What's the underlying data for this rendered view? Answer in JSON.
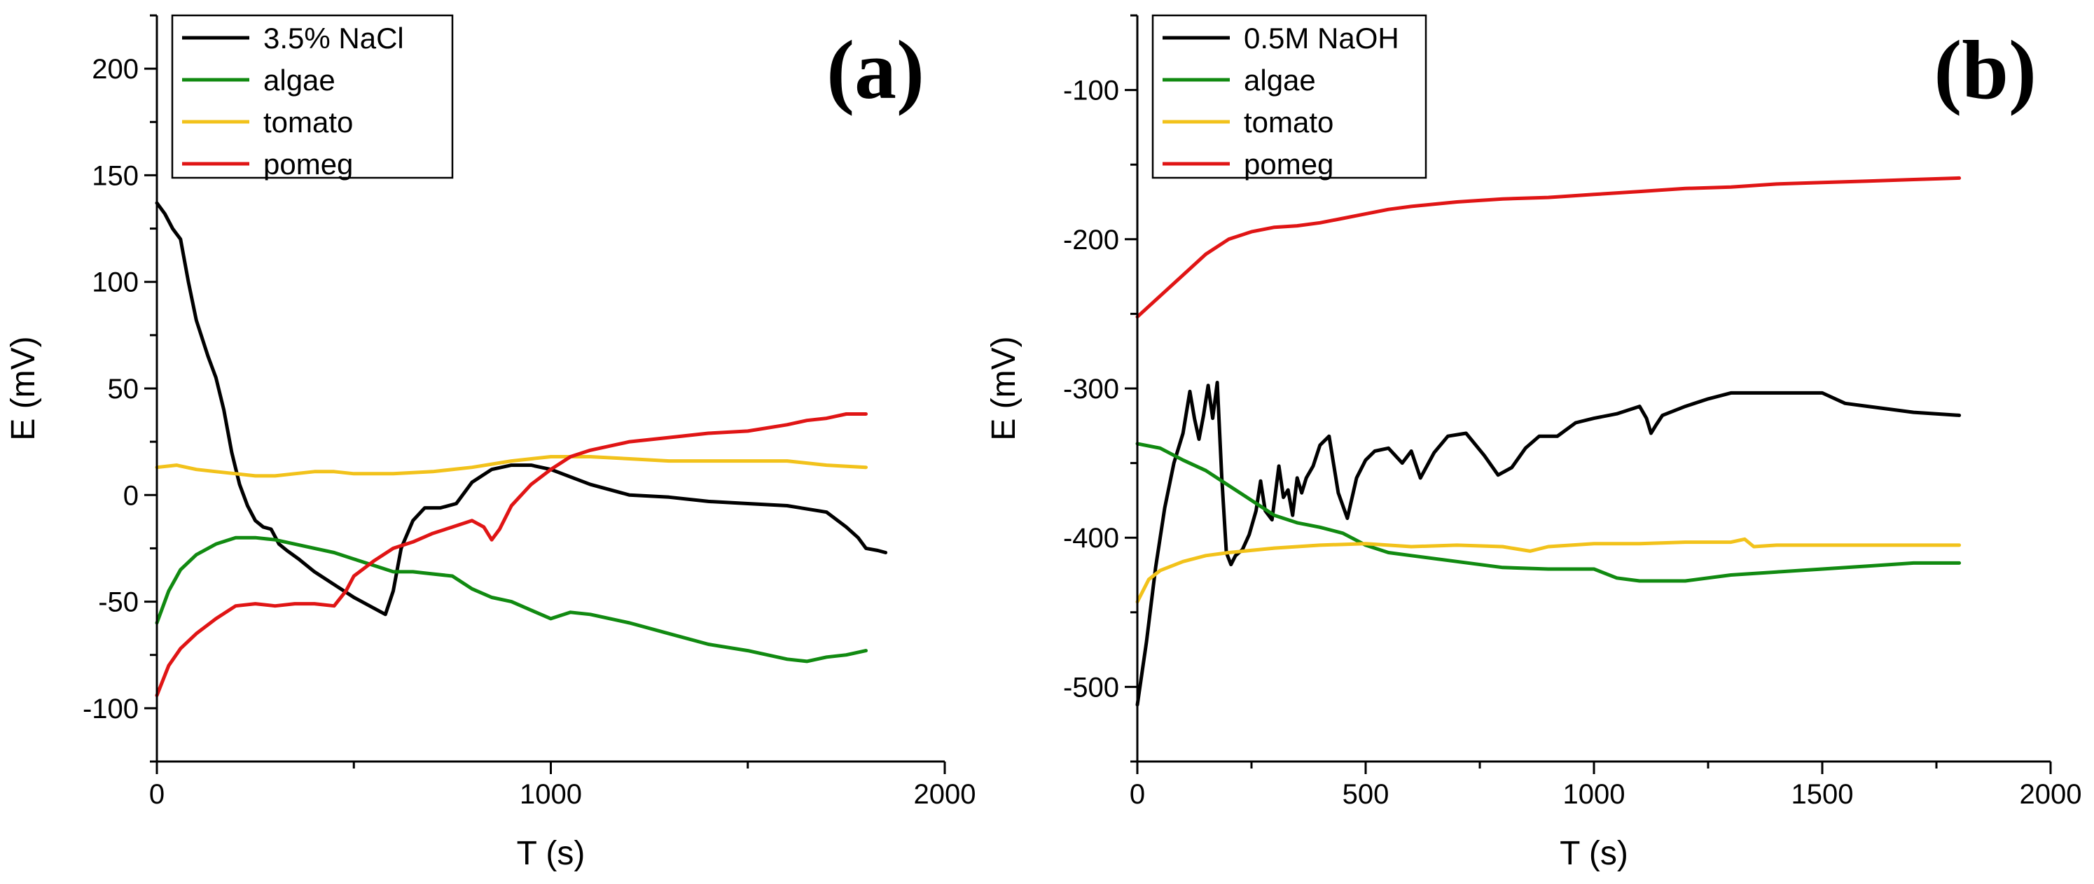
{
  "chart_data": [
    {
      "type": "line",
      "panel_label": "(a)",
      "xlabel": "T (s)",
      "ylabel": "E (mV)",
      "xlim": [
        0,
        2000
      ],
      "ylim": [
        -125,
        225
      ],
      "xticks": [
        0,
        1000,
        2000
      ],
      "yticks": [
        -100,
        -50,
        0,
        50,
        100,
        150,
        200
      ],
      "legend_position": "top-left",
      "series": [
        {
          "name": "3.5% NaCl",
          "color": "#000000",
          "x": [
            0,
            20,
            40,
            60,
            80,
            100,
            130,
            150,
            170,
            190,
            210,
            230,
            250,
            270,
            290,
            310,
            330,
            360,
            400,
            450,
            500,
            550,
            580,
            600,
            620,
            650,
            680,
            720,
            760,
            800,
            850,
            900,
            950,
            1000,
            1100,
            1200,
            1300,
            1400,
            1500,
            1600,
            1700,
            1750,
            1780,
            1800,
            1830,
            1850
          ],
          "y": [
            137,
            132,
            125,
            120,
            100,
            82,
            65,
            55,
            40,
            20,
            5,
            -5,
            -12,
            -15,
            -16,
            -23,
            -26,
            -30,
            -36,
            -42,
            -48,
            -53,
            -56,
            -45,
            -25,
            -12,
            -6,
            -6,
            -4,
            6,
            12,
            14,
            14,
            12,
            5,
            0,
            -1,
            -3,
            -4,
            -5,
            -8,
            -15,
            -20,
            -25,
            -26,
            -27
          ]
        },
        {
          "name": "algae",
          "color": "#118a11",
          "x": [
            0,
            30,
            60,
            100,
            150,
            200,
            250,
            300,
            350,
            400,
            450,
            500,
            550,
            600,
            650,
            700,
            750,
            800,
            850,
            900,
            950,
            1000,
            1050,
            1100,
            1200,
            1300,
            1400,
            1500,
            1600,
            1650,
            1700,
            1750,
            1800
          ],
          "y": [
            -60,
            -45,
            -35,
            -28,
            -23,
            -20,
            -20,
            -21,
            -23,
            -25,
            -27,
            -30,
            -33,
            -36,
            -36,
            -37,
            -38,
            -44,
            -48,
            -50,
            -54,
            -58,
            -55,
            -56,
            -60,
            -65,
            -70,
            -73,
            -77,
            -78,
            -76,
            -75,
            -73
          ]
        },
        {
          "name": "tomato",
          "color": "#f2c21b",
          "x": [
            0,
            50,
            100,
            150,
            200,
            250,
            300,
            350,
            400,
            450,
            500,
            600,
            700,
            800,
            900,
            1000,
            1100,
            1200,
            1300,
            1400,
            1500,
            1600,
            1700,
            1800
          ],
          "y": [
            13,
            14,
            12,
            11,
            10,
            9,
            9,
            10,
            11,
            11,
            10,
            10,
            11,
            13,
            16,
            18,
            18,
            17,
            16,
            16,
            16,
            16,
            14,
            13
          ]
        },
        {
          "name": "pomeg",
          "color": "#e01515",
          "x": [
            0,
            30,
            60,
            100,
            150,
            200,
            250,
            300,
            350,
            400,
            450,
            480,
            500,
            550,
            600,
            650,
            700,
            750,
            800,
            830,
            850,
            870,
            900,
            950,
            1000,
            1050,
            1100,
            1200,
            1300,
            1400,
            1500,
            1600,
            1650,
            1700,
            1750,
            1800
          ],
          "y": [
            -94,
            -80,
            -72,
            -65,
            -58,
            -52,
            -51,
            -52,
            -51,
            -51,
            -52,
            -45,
            -38,
            -31,
            -25,
            -22,
            -18,
            -15,
            -12,
            -15,
            -21,
            -16,
            -5,
            5,
            12,
            18,
            21,
            25,
            27,
            29,
            30,
            33,
            35,
            36,
            38,
            38
          ]
        }
      ]
    },
    {
      "type": "line",
      "panel_label": "(b)",
      "xlabel": "T (s)",
      "ylabel": "E (mV)",
      "xlim": [
        0,
        2000
      ],
      "ylim": [
        -550,
        -50
      ],
      "xticks": [
        0,
        500,
        1000,
        1500,
        2000
      ],
      "yticks": [
        -500,
        -400,
        -300,
        -200,
        -100
      ],
      "legend_position": "top-left",
      "series": [
        {
          "name": "0.5M NaOH",
          "color": "#000000",
          "x": [
            0,
            20,
            40,
            60,
            80,
            100,
            115,
            125,
            135,
            145,
            155,
            165,
            175,
            185,
            195,
            205,
            215,
            230,
            245,
            260,
            270,
            280,
            295,
            310,
            320,
            330,
            340,
            350,
            360,
            370,
            385,
            400,
            420,
            440,
            460,
            480,
            500,
            520,
            550,
            580,
            600,
            620,
            650,
            680,
            720,
            760,
            790,
            820,
            850,
            880,
            920,
            960,
            1000,
            1050,
            1100,
            1115,
            1125,
            1135,
            1150,
            1200,
            1250,
            1300,
            1400,
            1500,
            1550,
            1600,
            1700,
            1800
          ],
          "y": [
            -512,
            -470,
            -420,
            -380,
            -350,
            -330,
            -302,
            -320,
            -334,
            -318,
            -298,
            -320,
            -296,
            -360,
            -410,
            -418,
            -412,
            -408,
            -398,
            -382,
            -362,
            -382,
            -388,
            -352,
            -373,
            -368,
            -385,
            -360,
            -370,
            -360,
            -352,
            -338,
            -332,
            -370,
            -387,
            -360,
            -348,
            -342,
            -340,
            -350,
            -342,
            -360,
            -343,
            -332,
            -330,
            -345,
            -358,
            -353,
            -340,
            -332,
            -332,
            -323,
            -320,
            -317,
            -312,
            -320,
            -330,
            -325,
            -318,
            -312,
            -307,
            -303,
            -303,
            -303,
            -310,
            -312,
            -316,
            -318
          ]
        },
        {
          "name": "algae",
          "color": "#118a11",
          "x": [
            0,
            50,
            100,
            150,
            200,
            250,
            300,
            350,
            400,
            450,
            500,
            550,
            600,
            700,
            800,
            900,
            1000,
            1050,
            1100,
            1200,
            1300,
            1400,
            1500,
            1600,
            1700,
            1800
          ],
          "y": [
            -337,
            -340,
            -348,
            -355,
            -365,
            -375,
            -385,
            -390,
            -393,
            -397,
            -405,
            -410,
            -412,
            -416,
            -420,
            -421,
            -421,
            -427,
            -429,
            -429,
            -425,
            -423,
            -421,
            -419,
            -417,
            -417
          ]
        },
        {
          "name": "tomato",
          "color": "#f2c21b",
          "x": [
            0,
            25,
            50,
            100,
            150,
            200,
            300,
            400,
            500,
            600,
            700,
            800,
            860,
            900,
            1000,
            1100,
            1200,
            1300,
            1330,
            1350,
            1400,
            1500,
            1600,
            1700,
            1800
          ],
          "y": [
            -443,
            -428,
            -422,
            -416,
            -412,
            -410,
            -407,
            -405,
            -404,
            -406,
            -405,
            -406,
            -409,
            -406,
            -404,
            -404,
            -403,
            -403,
            -401,
            -406,
            -405,
            -405,
            -405,
            -405,
            -405
          ]
        },
        {
          "name": "pomeg",
          "color": "#e01515",
          "x": [
            0,
            50,
            100,
            150,
            200,
            250,
            300,
            350,
            400,
            450,
            500,
            550,
            600,
            700,
            800,
            900,
            1000,
            1100,
            1200,
            1300,
            1400,
            1500,
            1600,
            1700,
            1800
          ],
          "y": [
            -252,
            -238,
            -224,
            -210,
            -200,
            -195,
            -192,
            -191,
            -189,
            -186,
            -183,
            -180,
            -178,
            -175,
            -173,
            -172,
            -170,
            -168,
            -166,
            -165,
            -163,
            -162,
            -161,
            -160,
            -159
          ]
        }
      ]
    }
  ]
}
